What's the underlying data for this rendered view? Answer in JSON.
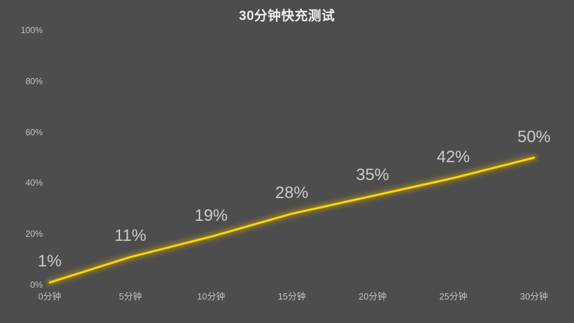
{
  "title": "30分钟快充测试",
  "colors": {
    "background": "#4d4d4d",
    "line": "#ffd60a",
    "glow": "#b99a18",
    "title_text": "#efefef",
    "axis_text": "#c3c3c3",
    "data_label_text": "#cbcbcb"
  },
  "chart_data": {
    "type": "line",
    "title": "30分钟快充测试",
    "categories": [
      "0分钟",
      "5分钟",
      "10分钟",
      "15分钟",
      "20分钟",
      "25分钟",
      "30分钟"
    ],
    "values": [
      1,
      11,
      19,
      28,
      35,
      42,
      50
    ],
    "data_labels": [
      "1%",
      "11%",
      "19%",
      "28%",
      "35%",
      "42%",
      "50%"
    ],
    "y_ticks": [
      {
        "label": "0%",
        "value": 0
      },
      {
        "label": "20%",
        "value": 20
      },
      {
        "label": "40%",
        "value": 40
      },
      {
        "label": "60%",
        "value": 60
      },
      {
        "label": "80%",
        "value": 80
      },
      {
        "label": "100%",
        "value": 100
      }
    ],
    "xlabel": "",
    "ylabel": "",
    "ylim": [
      0,
      100
    ],
    "grid": false,
    "legend": "none"
  }
}
